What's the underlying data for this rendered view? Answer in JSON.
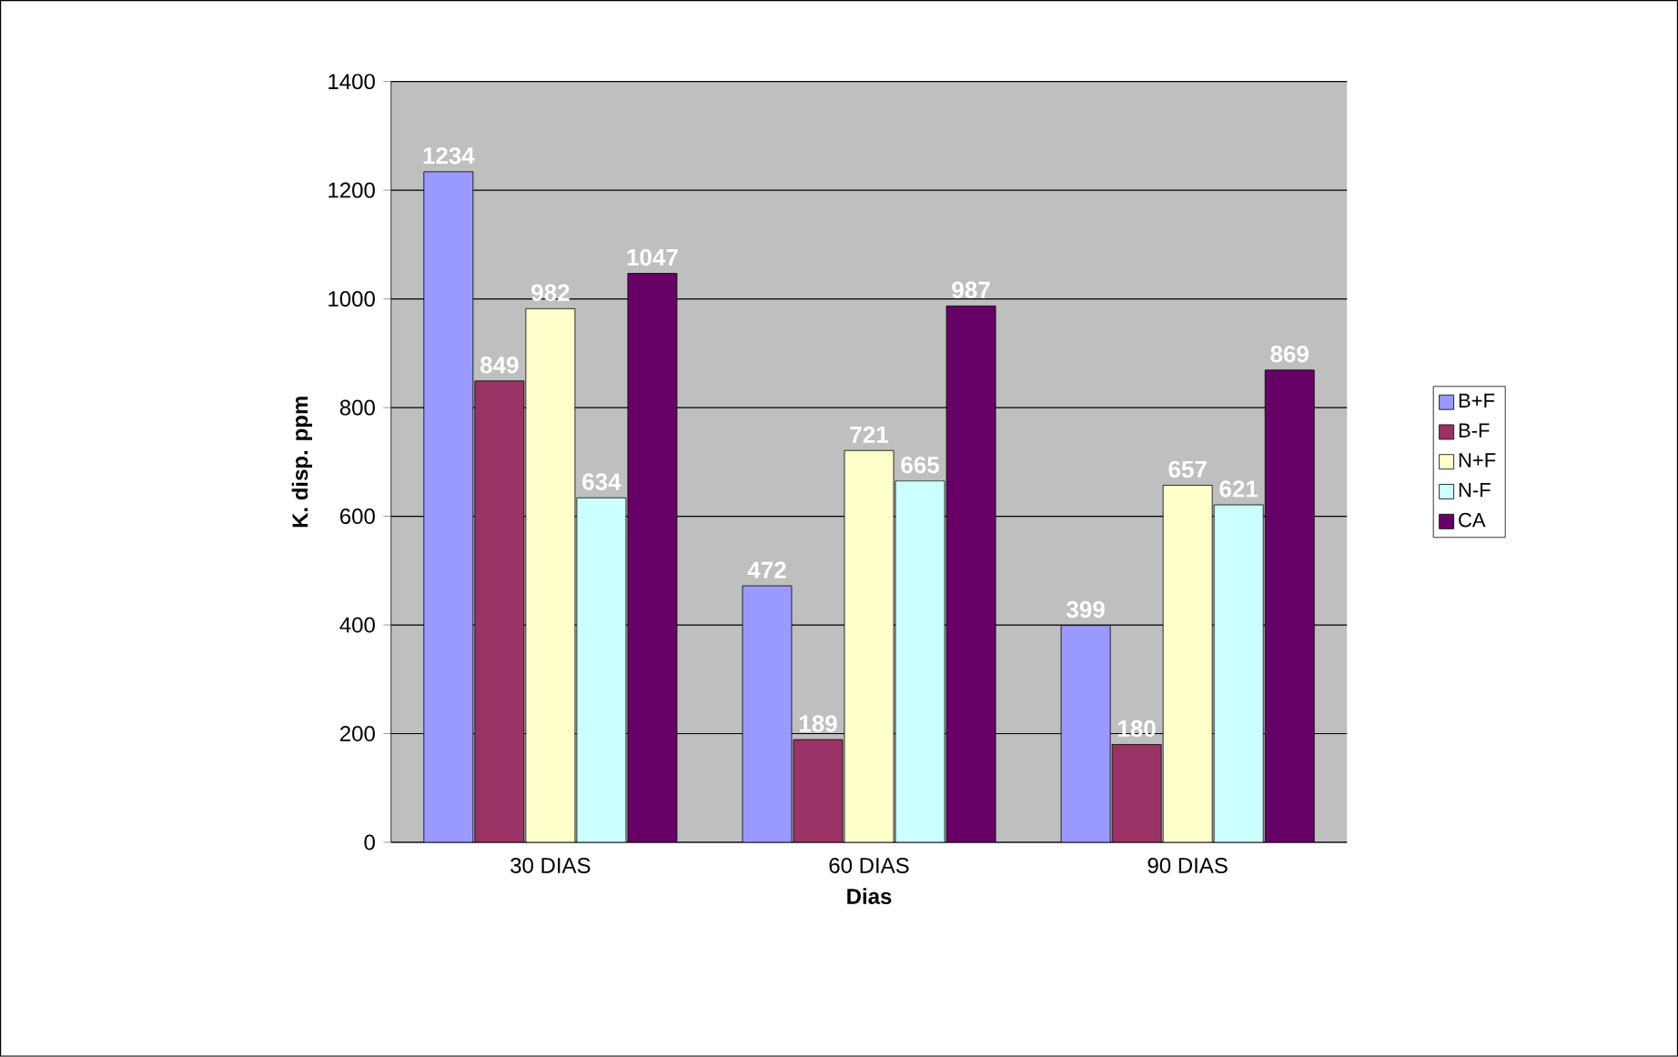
{
  "chart_data": {
    "type": "bar",
    "xlabel": "Dias",
    "ylabel": "K. disp. ppm",
    "categories": [
      "30 DIAS",
      "60 DIAS",
      "90 DIAS"
    ],
    "series": [
      {
        "name": "B+F",
        "color": "#9999ff",
        "values": [
          1234,
          472,
          399
        ]
      },
      {
        "name": "B-F",
        "color": "#993366",
        "values": [
          849,
          189,
          180
        ]
      },
      {
        "name": "N+F",
        "color": "#ffffcc",
        "values": [
          982,
          721,
          657
        ]
      },
      {
        "name": "N-F",
        "color": "#ccffff",
        "values": [
          634,
          665,
          621
        ]
      },
      {
        "name": "CA",
        "color": "#660066",
        "values": [
          1047,
          987,
          869
        ]
      }
    ],
    "ylim": [
      0,
      1400
    ],
    "yticks": [
      0,
      200,
      400,
      600,
      800,
      1000,
      1200,
      1400
    ],
    "grid": "y",
    "legend": "right",
    "data_labels": true
  }
}
